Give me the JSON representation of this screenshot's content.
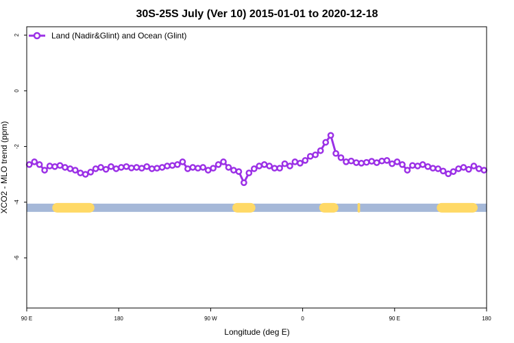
{
  "chart_data": {
    "type": "line",
    "title": "30S-25S July (Ver 10)   2015-01-01 to 2020-12-18",
    "xlabel": "Longitude (deg E)",
    "ylabel": "XCO2 - MLO trend (ppm)",
    "xlim": [
      90,
      450
    ],
    "ylim": [
      -7.8,
      2.3
    ],
    "x_ticks": [
      {
        "value": 90,
        "label": "90 E"
      },
      {
        "value": 162,
        "label": "180"
      },
      {
        "value": 234,
        "label": "90 W"
      },
      {
        "value": 306,
        "label": "0"
      },
      {
        "value": 378,
        "label": "90 E"
      },
      {
        "value": 450,
        "label": "180"
      }
    ],
    "y_ticks": [
      {
        "value": 2,
        "label": "2"
      },
      {
        "value": 0,
        "label": "0"
      },
      {
        "value": -2,
        "label": "-2"
      },
      {
        "value": -4,
        "label": "-4"
      },
      {
        "value": -6,
        "label": "-6"
      }
    ],
    "legend": {
      "position": "top-left"
    },
    "series": [
      {
        "name": "Land (Nadir&Glint) and Ocean (Glint)",
        "color": "#9b30e6",
        "x": [
          92,
          96,
          100,
          104,
          108,
          112,
          116,
          120,
          124,
          128,
          132,
          136,
          140,
          144,
          148,
          152,
          156,
          160,
          164,
          168,
          172,
          176,
          180,
          184,
          188,
          192,
          196,
          200,
          204,
          208,
          212,
          216,
          220,
          224,
          228,
          232,
          236,
          240,
          244,
          248,
          252,
          256,
          260,
          264,
          268,
          272,
          276,
          280,
          284,
          288,
          292,
          296,
          300,
          304,
          308,
          312,
          316,
          320,
          324,
          328,
          332,
          336,
          340,
          344,
          348,
          352,
          356,
          360,
          364,
          368,
          372,
          376,
          380,
          384,
          388,
          392,
          396,
          400,
          404,
          408,
          412,
          416,
          420,
          424,
          428,
          432,
          436,
          440,
          444,
          448
        ],
        "y": [
          -2.65,
          -2.55,
          -2.65,
          -2.85,
          -2.7,
          -2.72,
          -2.68,
          -2.75,
          -2.8,
          -2.85,
          -2.95,
          -3.0,
          -2.92,
          -2.8,
          -2.75,
          -2.82,
          -2.72,
          -2.8,
          -2.75,
          -2.72,
          -2.77,
          -2.75,
          -2.78,
          -2.72,
          -2.8,
          -2.78,
          -2.75,
          -2.7,
          -2.68,
          -2.65,
          -2.55,
          -2.8,
          -2.75,
          -2.78,
          -2.75,
          -2.85,
          -2.78,
          -2.65,
          -2.55,
          -2.75,
          -2.85,
          -2.9,
          -3.3,
          -2.95,
          -2.8,
          -2.7,
          -2.65,
          -2.7,
          -2.78,
          -2.78,
          -2.62,
          -2.7,
          -2.55,
          -2.6,
          -2.5,
          -2.35,
          -2.3,
          -2.15,
          -1.85,
          -1.6,
          -2.25,
          -2.4,
          -2.55,
          -2.52,
          -2.58,
          -2.6,
          -2.57,
          -2.53,
          -2.58,
          -2.52,
          -2.5,
          -2.62,
          -2.55,
          -2.65,
          -2.85,
          -2.68,
          -2.7,
          -2.65,
          -2.72,
          -2.78,
          -2.8,
          -2.88,
          -2.98,
          -2.9,
          -2.8,
          -2.75,
          -2.82,
          -2.7,
          -2.8,
          -2.85
        ]
      }
    ],
    "surface_band": {
      "y": -4.2,
      "ocean_color": "#a5b8d8",
      "land_color": "#ffd966",
      "land_segments": [
        [
          110,
          143
        ],
        [
          251,
          269
        ],
        [
          319,
          334
        ],
        [
          349,
          351
        ],
        [
          411,
          443
        ]
      ]
    }
  }
}
